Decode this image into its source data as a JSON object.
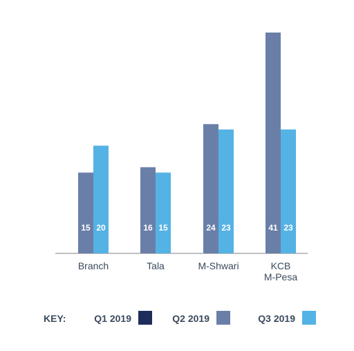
{
  "chart_data": {
    "type": "bar",
    "categories": [
      "Branch",
      "Tala",
      "M-Shwari",
      "KCB\nM-Pesa"
    ],
    "series": [
      {
        "name": "Q1 2019",
        "color": "#1f2d5c",
        "values": [
          null,
          null,
          null,
          null
        ]
      },
      {
        "name": "Q2 2019",
        "color": "#6a7fa8",
        "values": [
          15,
          16,
          24,
          41
        ]
      },
      {
        "name": "Q3 2019",
        "color": "#55b2e4",
        "values": [
          20,
          15,
          23,
          23
        ]
      }
    ],
    "ylim": [
      0,
      41
    ],
    "grid": false,
    "legend": "bottom",
    "legend_key_label": "KEY:"
  }
}
